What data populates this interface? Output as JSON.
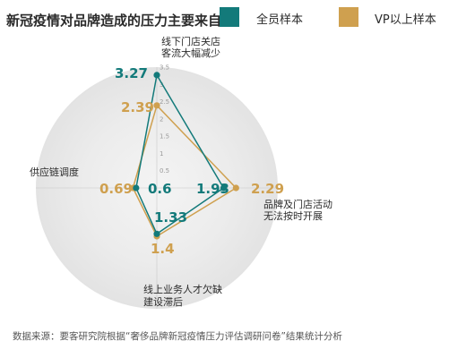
{
  "chart_data": {
    "type": "radar",
    "title": "新冠疫情对品牌造成的压力主要来自于",
    "axes": [
      [
        "线下门店关店",
        "客流大幅减少"
      ],
      [
        "品牌及门店活动",
        "无法按时开展"
      ],
      [
        "线上业务人才欠缺",
        "建设滞后"
      ],
      [
        "供应链调度"
      ]
    ],
    "range": [
      0,
      3.5
    ],
    "ticks": [
      "0.5",
      "1",
      "1.5",
      "2",
      "2.5",
      "3",
      "3.5"
    ],
    "series": [
      {
        "name": "全员样本",
        "color": "#137a7a",
        "values": [
          3.27,
          1.93,
          1.33,
          0.6
        ],
        "labels": [
          "3.27",
          "1.93",
          "1.33",
          "0.6"
        ]
      },
      {
        "name": "VP以上样本",
        "color": "#cfa04f",
        "values": [
          2.39,
          2.29,
          1.4,
          0.69
        ],
        "labels": [
          "2.39",
          "2.29",
          "1.4",
          "0.69"
        ]
      }
    ],
    "legend": "top-right"
  },
  "source": "数据来源：要客研究院根据“奢侈品牌新冠疫情压力评估调研问卷”结果统计分析"
}
